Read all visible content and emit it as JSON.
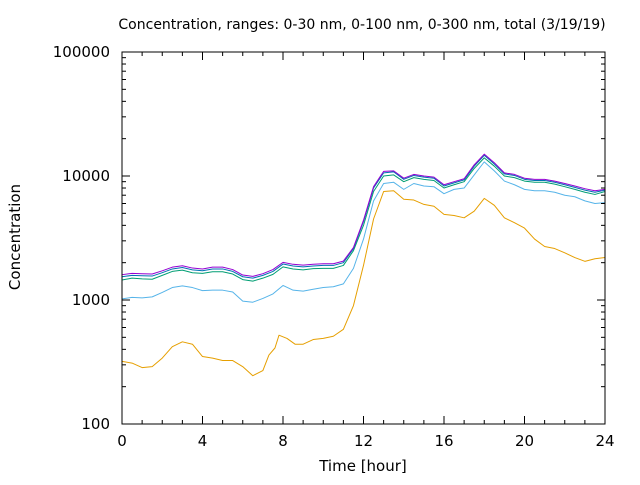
{
  "chart_data": {
    "type": "line",
    "title": "Concentration, ranges: 0-30 nm, 0-100 nm, 0-300 nm, total (3/19/19)",
    "xlabel": "Time [hour]",
    "ylabel": "Concentration",
    "xlim": [
      0,
      24
    ],
    "ylim": [
      100,
      100000
    ],
    "y_scale": "log",
    "grid": false,
    "x_ticks": [
      0,
      4,
      8,
      12,
      16,
      20,
      24
    ],
    "x_tick_labels": [
      "0",
      "4",
      "8",
      "12",
      "16",
      "20",
      "24"
    ],
    "y_ticks": [
      100,
      1000,
      10000,
      100000
    ],
    "y_tick_labels": [
      "100",
      "1000",
      "10000",
      "100000"
    ],
    "series": [
      {
        "color": "#e69f00",
        "points": [
          [
            0,
            320
          ],
          [
            0.5,
            310
          ],
          [
            1,
            285
          ],
          [
            1.5,
            290
          ],
          [
            2,
            340
          ],
          [
            2.5,
            420
          ],
          [
            3,
            460
          ],
          [
            3.5,
            440
          ],
          [
            4,
            350
          ],
          [
            4.5,
            340
          ],
          [
            5,
            325
          ],
          [
            5.5,
            325
          ],
          [
            6,
            290
          ],
          [
            6.5,
            245
          ],
          [
            7,
            270
          ],
          [
            7.3,
            360
          ],
          [
            7.6,
            410
          ],
          [
            7.8,
            520
          ],
          [
            8.2,
            490
          ],
          [
            8.6,
            440
          ],
          [
            9,
            440
          ],
          [
            9.5,
            480
          ],
          [
            10,
            490
          ],
          [
            10.5,
            510
          ],
          [
            11,
            580
          ],
          [
            11.5,
            900
          ],
          [
            12,
            1900
          ],
          [
            12.5,
            4500
          ],
          [
            13,
            7500
          ],
          [
            13.5,
            7600
          ],
          [
            14,
            6500
          ],
          [
            14.5,
            6400
          ],
          [
            15,
            5900
          ],
          [
            15.5,
            5700
          ],
          [
            16,
            4900
          ],
          [
            16.5,
            4800
          ],
          [
            17,
            4600
          ],
          [
            17.5,
            5200
          ],
          [
            18,
            6600
          ],
          [
            18.5,
            5800
          ],
          [
            19,
            4600
          ],
          [
            19.5,
            4200
          ],
          [
            20,
            3800
          ],
          [
            20.5,
            3100
          ],
          [
            21,
            2700
          ],
          [
            21.5,
            2600
          ],
          [
            22,
            2400
          ],
          [
            22.5,
            2200
          ],
          [
            23,
            2050
          ],
          [
            23.5,
            2150
          ],
          [
            24,
            2200
          ]
        ]
      },
      {
        "color": "#56b4e9",
        "points": [
          [
            0,
            1020
          ],
          [
            0.5,
            1050
          ],
          [
            1,
            1040
          ],
          [
            1.5,
            1060
          ],
          [
            2,
            1150
          ],
          [
            2.5,
            1260
          ],
          [
            3,
            1300
          ],
          [
            3.5,
            1260
          ],
          [
            4,
            1190
          ],
          [
            4.5,
            1200
          ],
          [
            5,
            1200
          ],
          [
            5.5,
            1160
          ],
          [
            6,
            980
          ],
          [
            6.5,
            960
          ],
          [
            7,
            1030
          ],
          [
            7.5,
            1120
          ],
          [
            8,
            1310
          ],
          [
            8.5,
            1200
          ],
          [
            9,
            1180
          ],
          [
            9.5,
            1220
          ],
          [
            10,
            1260
          ],
          [
            10.5,
            1280
          ],
          [
            11,
            1350
          ],
          [
            11.5,
            1800
          ],
          [
            12,
            3100
          ],
          [
            12.5,
            6300
          ],
          [
            13,
            8700
          ],
          [
            13.5,
            8900
          ],
          [
            14,
            7800
          ],
          [
            14.5,
            8700
          ],
          [
            15,
            8300
          ],
          [
            15.5,
            8200
          ],
          [
            16,
            7200
          ],
          [
            16.5,
            7800
          ],
          [
            17,
            8000
          ],
          [
            17.5,
            10200
          ],
          [
            18,
            13000
          ],
          [
            18.5,
            11000
          ],
          [
            19,
            9100
          ],
          [
            19.5,
            8500
          ],
          [
            20,
            7800
          ],
          [
            20.5,
            7600
          ],
          [
            21,
            7600
          ],
          [
            21.5,
            7400
          ],
          [
            22,
            7000
          ],
          [
            22.5,
            6800
          ],
          [
            23,
            6300
          ],
          [
            23.5,
            6000
          ],
          [
            24,
            6100
          ]
        ]
      },
      {
        "color": "#009e73",
        "points": [
          [
            0,
            1450
          ],
          [
            0.5,
            1500
          ],
          [
            1,
            1480
          ],
          [
            1.5,
            1470
          ],
          [
            2,
            1580
          ],
          [
            2.5,
            1700
          ],
          [
            3,
            1740
          ],
          [
            3.5,
            1660
          ],
          [
            4,
            1640
          ],
          [
            4.5,
            1690
          ],
          [
            5,
            1690
          ],
          [
            5.5,
            1620
          ],
          [
            6,
            1460
          ],
          [
            6.5,
            1420
          ],
          [
            7,
            1500
          ],
          [
            7.5,
            1610
          ],
          [
            8,
            1850
          ],
          [
            8.5,
            1780
          ],
          [
            9,
            1750
          ],
          [
            9.5,
            1790
          ],
          [
            10,
            1800
          ],
          [
            10.5,
            1800
          ],
          [
            11,
            1900
          ],
          [
            11.5,
            2500
          ],
          [
            12,
            4000
          ],
          [
            12.5,
            7500
          ],
          [
            13,
            10000
          ],
          [
            13.5,
            10200
          ],
          [
            14,
            9000
          ],
          [
            14.5,
            9700
          ],
          [
            15,
            9400
          ],
          [
            15.5,
            9200
          ],
          [
            16,
            8000
          ],
          [
            16.5,
            8500
          ],
          [
            17,
            9000
          ],
          [
            17.5,
            11500
          ],
          [
            18,
            14000
          ],
          [
            18.5,
            12000
          ],
          [
            19,
            10000
          ],
          [
            19.5,
            9700
          ],
          [
            20,
            9100
          ],
          [
            20.5,
            8900
          ],
          [
            21,
            8900
          ],
          [
            21.5,
            8600
          ],
          [
            22,
            8200
          ],
          [
            22.5,
            7800
          ],
          [
            23,
            7400
          ],
          [
            23.5,
            7100
          ],
          [
            24,
            7500
          ]
        ]
      },
      {
        "color": "#0072b2",
        "points": [
          [
            0,
            1540
          ],
          [
            0.5,
            1580
          ],
          [
            1,
            1570
          ],
          [
            1.5,
            1560
          ],
          [
            2,
            1660
          ],
          [
            2.5,
            1780
          ],
          [
            3,
            1830
          ],
          [
            3.5,
            1750
          ],
          [
            4,
            1720
          ],
          [
            4.5,
            1780
          ],
          [
            5,
            1780
          ],
          [
            5.5,
            1700
          ],
          [
            6,
            1540
          ],
          [
            6.5,
            1500
          ],
          [
            7,
            1580
          ],
          [
            7.5,
            1700
          ],
          [
            8,
            1950
          ],
          [
            8.5,
            1880
          ],
          [
            9,
            1850
          ],
          [
            9.5,
            1880
          ],
          [
            10,
            1900
          ],
          [
            10.5,
            1900
          ],
          [
            11,
            2000
          ],
          [
            11.5,
            2600
          ],
          [
            12,
            4300
          ],
          [
            12.5,
            8000
          ],
          [
            13,
            10600
          ],
          [
            13.5,
            10800
          ],
          [
            14,
            9400
          ],
          [
            14.5,
            10100
          ],
          [
            15,
            9800
          ],
          [
            15.5,
            9600
          ],
          [
            16,
            8300
          ],
          [
            16.5,
            8800
          ],
          [
            17,
            9300
          ],
          [
            17.5,
            12000
          ],
          [
            18,
            14700
          ],
          [
            18.5,
            12500
          ],
          [
            19,
            10400
          ],
          [
            19.5,
            10100
          ],
          [
            20,
            9400
          ],
          [
            20.5,
            9200
          ],
          [
            21,
            9200
          ],
          [
            21.5,
            8900
          ],
          [
            22,
            8500
          ],
          [
            22.5,
            8100
          ],
          [
            23,
            7700
          ],
          [
            23.5,
            7400
          ],
          [
            24,
            7700
          ]
        ]
      },
      {
        "color": "#9400d3",
        "points": [
          [
            0,
            1600
          ],
          [
            0.5,
            1640
          ],
          [
            1,
            1630
          ],
          [
            1.5,
            1620
          ],
          [
            2,
            1720
          ],
          [
            2.5,
            1840
          ],
          [
            3,
            1890
          ],
          [
            3.5,
            1810
          ],
          [
            4,
            1780
          ],
          [
            4.5,
            1840
          ],
          [
            5,
            1840
          ],
          [
            5.5,
            1760
          ],
          [
            6,
            1590
          ],
          [
            6.5,
            1550
          ],
          [
            7,
            1630
          ],
          [
            7.5,
            1760
          ],
          [
            8,
            2010
          ],
          [
            8.5,
            1940
          ],
          [
            9,
            1910
          ],
          [
            9.5,
            1940
          ],
          [
            10,
            1960
          ],
          [
            10.5,
            1960
          ],
          [
            11,
            2060
          ],
          [
            11.5,
            2650
          ],
          [
            12,
            4400
          ],
          [
            12.5,
            8200
          ],
          [
            13,
            10900
          ],
          [
            13.5,
            11000
          ],
          [
            14,
            9600
          ],
          [
            14.5,
            10300
          ],
          [
            15,
            10000
          ],
          [
            15.5,
            9800
          ],
          [
            16,
            8500
          ],
          [
            16.5,
            9000
          ],
          [
            17,
            9500
          ],
          [
            17.5,
            12300
          ],
          [
            18,
            15000
          ],
          [
            18.5,
            12800
          ],
          [
            19,
            10600
          ],
          [
            19.5,
            10300
          ],
          [
            20,
            9600
          ],
          [
            20.5,
            9400
          ],
          [
            21,
            9400
          ],
          [
            21.5,
            9100
          ],
          [
            22,
            8700
          ],
          [
            22.5,
            8300
          ],
          [
            23,
            7900
          ],
          [
            23.5,
            7600
          ],
          [
            24,
            7800
          ]
        ]
      }
    ]
  }
}
